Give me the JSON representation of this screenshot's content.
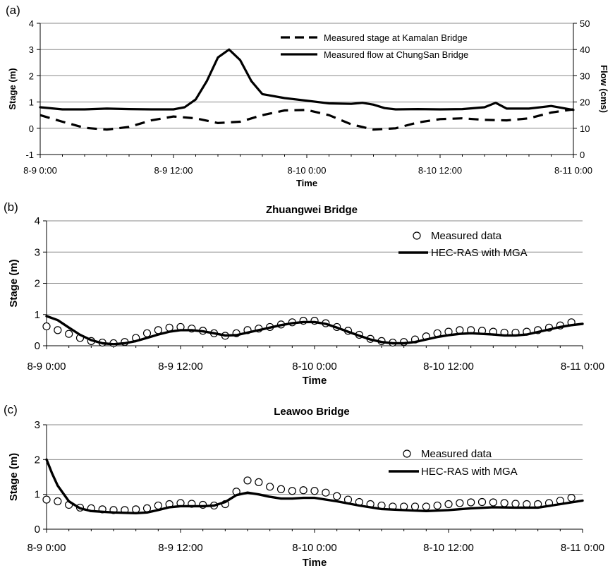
{
  "chart_data": [
    {
      "panel": "(a)",
      "type": "line",
      "title": "",
      "xlabel": "Time",
      "ylabel": "Stage (m)",
      "ylabel_right": "Flow (cms)",
      "xlim": [
        0,
        48
      ],
      "ylim": [
        -1,
        4
      ],
      "ylim_right": [
        0,
        50
      ],
      "yticks": [
        "-1",
        "0",
        "1",
        "2",
        "3",
        "4"
      ],
      "yticks_right": [
        "0",
        "10",
        "20",
        "30",
        "40",
        "50"
      ],
      "xtick_labels": [
        "8-9 0:00",
        "8-9 12:00",
        "8-10 0:00",
        "8-10 12:00",
        "8-11 0:00"
      ],
      "grid": true,
      "legend_position": "top-right",
      "series": [
        {
          "name": "Measured stage at Kamalan Bridge",
          "style": "dashed",
          "axis": "left",
          "points": [
            [
              0,
              0.5
            ],
            [
              2,
              0.25
            ],
            [
              4,
              0.02
            ],
            [
              6,
              -0.05
            ],
            [
              8,
              0.05
            ],
            [
              10,
              0.3
            ],
            [
              12,
              0.45
            ],
            [
              14,
              0.38
            ],
            [
              16,
              0.2
            ],
            [
              18,
              0.25
            ],
            [
              20,
              0.5
            ],
            [
              22,
              0.68
            ],
            [
              24,
              0.7
            ],
            [
              26,
              0.5
            ],
            [
              28,
              0.15
            ],
            [
              30,
              -0.05
            ],
            [
              32,
              0.0
            ],
            [
              34,
              0.22
            ],
            [
              36,
              0.35
            ],
            [
              38,
              0.38
            ],
            [
              40,
              0.32
            ],
            [
              42,
              0.3
            ],
            [
              44,
              0.38
            ],
            [
              46,
              0.6
            ],
            [
              48,
              0.72
            ]
          ]
        },
        {
          "name": "Measured flow at ChungSan Bridge",
          "style": "solid",
          "axis": "right",
          "points": [
            [
              0,
              18
            ],
            [
              2,
              17.2
            ],
            [
              4,
              17.2
            ],
            [
              6,
              17.5
            ],
            [
              8,
              17.3
            ],
            [
              10,
              17.2
            ],
            [
              12,
              17.2
            ],
            [
              13,
              18
            ],
            [
              14,
              21
            ],
            [
              15,
              28
            ],
            [
              16,
              37
            ],
            [
              17,
              40
            ],
            [
              18,
              36
            ],
            [
              19,
              28
            ],
            [
              20,
              23
            ],
            [
              22,
              21.5
            ],
            [
              24,
              20.5
            ],
            [
              26,
              19.5
            ],
            [
              28,
              19.3
            ],
            [
              29,
              19.7
            ],
            [
              30,
              19
            ],
            [
              31,
              17.7
            ],
            [
              32,
              17.2
            ],
            [
              34,
              17.3
            ],
            [
              36,
              17.2
            ],
            [
              38,
              17.3
            ],
            [
              40,
              18
            ],
            [
              41,
              19.7
            ],
            [
              42,
              17.5
            ],
            [
              44,
              17.5
            ],
            [
              46,
              18.5
            ],
            [
              48,
              17
            ]
          ]
        }
      ]
    },
    {
      "panel": "(b)",
      "type": "line",
      "title": "Zhuangwei Bridge",
      "xlabel": "Time",
      "ylabel": "Stage (m)",
      "xlim": [
        0,
        48
      ],
      "ylim": [
        0,
        4
      ],
      "yticks": [
        "0",
        "1",
        "2",
        "3",
        "4"
      ],
      "xtick_labels": [
        "8-9 0:00",
        "8-9 12:00",
        "8-10 0:00",
        "8-10 12:00",
        "8-11 0:00"
      ],
      "grid": true,
      "legend_position": "top-right",
      "series": [
        {
          "name": "Measured data",
          "style": "markers",
          "points": [
            [
              0,
              0.62
            ],
            [
              1,
              0.5
            ],
            [
              2,
              0.38
            ],
            [
              3,
              0.25
            ],
            [
              4,
              0.15
            ],
            [
              5,
              0.1
            ],
            [
              6,
              0.08
            ],
            [
              7,
              0.12
            ],
            [
              8,
              0.25
            ],
            [
              9,
              0.4
            ],
            [
              10,
              0.5
            ],
            [
              11,
              0.58
            ],
            [
              12,
              0.6
            ],
            [
              13,
              0.55
            ],
            [
              14,
              0.48
            ],
            [
              15,
              0.4
            ],
            [
              16,
              0.32
            ],
            [
              17,
              0.4
            ],
            [
              18,
              0.5
            ],
            [
              19,
              0.55
            ],
            [
              20,
              0.6
            ],
            [
              21,
              0.68
            ],
            [
              22,
              0.75
            ],
            [
              23,
              0.8
            ],
            [
              24,
              0.8
            ],
            [
              25,
              0.72
            ],
            [
              26,
              0.6
            ],
            [
              27,
              0.48
            ],
            [
              28,
              0.35
            ],
            [
              29,
              0.22
            ],
            [
              30,
              0.15
            ],
            [
              31,
              0.1
            ],
            [
              32,
              0.12
            ],
            [
              33,
              0.2
            ],
            [
              34,
              0.3
            ],
            [
              35,
              0.4
            ],
            [
              36,
              0.45
            ],
            [
              37,
              0.5
            ],
            [
              38,
              0.5
            ],
            [
              39,
              0.48
            ],
            [
              40,
              0.45
            ],
            [
              41,
              0.42
            ],
            [
              42,
              0.42
            ],
            [
              43,
              0.45
            ],
            [
              44,
              0.5
            ],
            [
              45,
              0.58
            ],
            [
              46,
              0.65
            ],
            [
              47,
              0.75
            ]
          ]
        },
        {
          "name": "HEC-RAS with MGA",
          "style": "solid",
          "points": [
            [
              0,
              0.95
            ],
            [
              1,
              0.82
            ],
            [
              2,
              0.58
            ],
            [
              3,
              0.35
            ],
            [
              4,
              0.18
            ],
            [
              5,
              0.08
            ],
            [
              6,
              0.05
            ],
            [
              7,
              0.08
            ],
            [
              8,
              0.15
            ],
            [
              9,
              0.25
            ],
            [
              10,
              0.36
            ],
            [
              11,
              0.45
            ],
            [
              12,
              0.5
            ],
            [
              13,
              0.5
            ],
            [
              14,
              0.46
            ],
            [
              15,
              0.4
            ],
            [
              16,
              0.33
            ],
            [
              17,
              0.34
            ],
            [
              18,
              0.42
            ],
            [
              19,
              0.5
            ],
            [
              20,
              0.58
            ],
            [
              21,
              0.66
            ],
            [
              22,
              0.72
            ],
            [
              23,
              0.76
            ],
            [
              24,
              0.76
            ],
            [
              25,
              0.7
            ],
            [
              26,
              0.58
            ],
            [
              27,
              0.45
            ],
            [
              28,
              0.32
            ],
            [
              29,
              0.2
            ],
            [
              30,
              0.12
            ],
            [
              31,
              0.08
            ],
            [
              32,
              0.08
            ],
            [
              33,
              0.12
            ],
            [
              34,
              0.2
            ],
            [
              35,
              0.28
            ],
            [
              36,
              0.34
            ],
            [
              37,
              0.38
            ],
            [
              38,
              0.4
            ],
            [
              39,
              0.38
            ],
            [
              40,
              0.36
            ],
            [
              41,
              0.33
            ],
            [
              42,
              0.33
            ],
            [
              43,
              0.36
            ],
            [
              44,
              0.44
            ],
            [
              45,
              0.52
            ],
            [
              46,
              0.6
            ],
            [
              47,
              0.66
            ],
            [
              48,
              0.7
            ]
          ]
        }
      ]
    },
    {
      "panel": "(c)",
      "type": "line",
      "title": "Leawoo Bridge",
      "xlabel": "Time",
      "ylabel": "Stage (m)",
      "xlim": [
        0,
        48
      ],
      "ylim": [
        0,
        3
      ],
      "yticks": [
        "0",
        "1",
        "2",
        "3"
      ],
      "xtick_labels": [
        "8-9 0:00",
        "8-9 12:00",
        "8-10 0:00",
        "8-10 12:00",
        "8-11 0:00"
      ],
      "grid": true,
      "legend_position": "center-right",
      "series": [
        {
          "name": "Measured data",
          "style": "markers",
          "points": [
            [
              0,
              0.85
            ],
            [
              1,
              0.8
            ],
            [
              2,
              0.7
            ],
            [
              3,
              0.62
            ],
            [
              4,
              0.6
            ],
            [
              5,
              0.57
            ],
            [
              6,
              0.55
            ],
            [
              7,
              0.55
            ],
            [
              8,
              0.57
            ],
            [
              9,
              0.6
            ],
            [
              10,
              0.68
            ],
            [
              11,
              0.72
            ],
            [
              12,
              0.75
            ],
            [
              13,
              0.73
            ],
            [
              14,
              0.7
            ],
            [
              15,
              0.68
            ],
            [
              16,
              0.72
            ],
            [
              17,
              1.08
            ],
            [
              18,
              1.4
            ],
            [
              19,
              1.35
            ],
            [
              20,
              1.22
            ],
            [
              21,
              1.15
            ],
            [
              22,
              1.1
            ],
            [
              23,
              1.12
            ],
            [
              24,
              1.1
            ],
            [
              25,
              1.05
            ],
            [
              26,
              0.95
            ],
            [
              27,
              0.85
            ],
            [
              28,
              0.78
            ],
            [
              29,
              0.72
            ],
            [
              30,
              0.68
            ],
            [
              31,
              0.65
            ],
            [
              32,
              0.65
            ],
            [
              33,
              0.65
            ],
            [
              34,
              0.65
            ],
            [
              35,
              0.68
            ],
            [
              36,
              0.72
            ],
            [
              37,
              0.75
            ],
            [
              38,
              0.77
            ],
            [
              39,
              0.78
            ],
            [
              40,
              0.77
            ],
            [
              41,
              0.75
            ],
            [
              42,
              0.73
            ],
            [
              43,
              0.72
            ],
            [
              44,
              0.72
            ],
            [
              45,
              0.75
            ],
            [
              46,
              0.82
            ],
            [
              47,
              0.9
            ]
          ]
        },
        {
          "name": "HEC-RAS with MGA",
          "style": "solid",
          "points": [
            [
              0,
              2.0
            ],
            [
              0.5,
              1.6
            ],
            [
              1,
              1.25
            ],
            [
              2,
              0.8
            ],
            [
              3,
              0.6
            ],
            [
              4,
              0.52
            ],
            [
              6,
              0.48
            ],
            [
              8,
              0.46
            ],
            [
              9,
              0.48
            ],
            [
              10,
              0.55
            ],
            [
              11,
              0.63
            ],
            [
              12,
              0.66
            ],
            [
              14,
              0.66
            ],
            [
              15,
              0.68
            ],
            [
              16,
              0.78
            ],
            [
              17,
              0.98
            ],
            [
              18,
              1.05
            ],
            [
              19,
              1.0
            ],
            [
              20,
              0.93
            ],
            [
              21,
              0.88
            ],
            [
              22,
              0.88
            ],
            [
              23,
              0.9
            ],
            [
              24,
              0.9
            ],
            [
              26,
              0.8
            ],
            [
              28,
              0.68
            ],
            [
              30,
              0.58
            ],
            [
              32,
              0.55
            ],
            [
              34,
              0.52
            ],
            [
              36,
              0.55
            ],
            [
              38,
              0.6
            ],
            [
              40,
              0.63
            ],
            [
              42,
              0.62
            ],
            [
              44,
              0.62
            ],
            [
              46,
              0.72
            ],
            [
              48,
              0.82
            ]
          ]
        }
      ]
    }
  ]
}
